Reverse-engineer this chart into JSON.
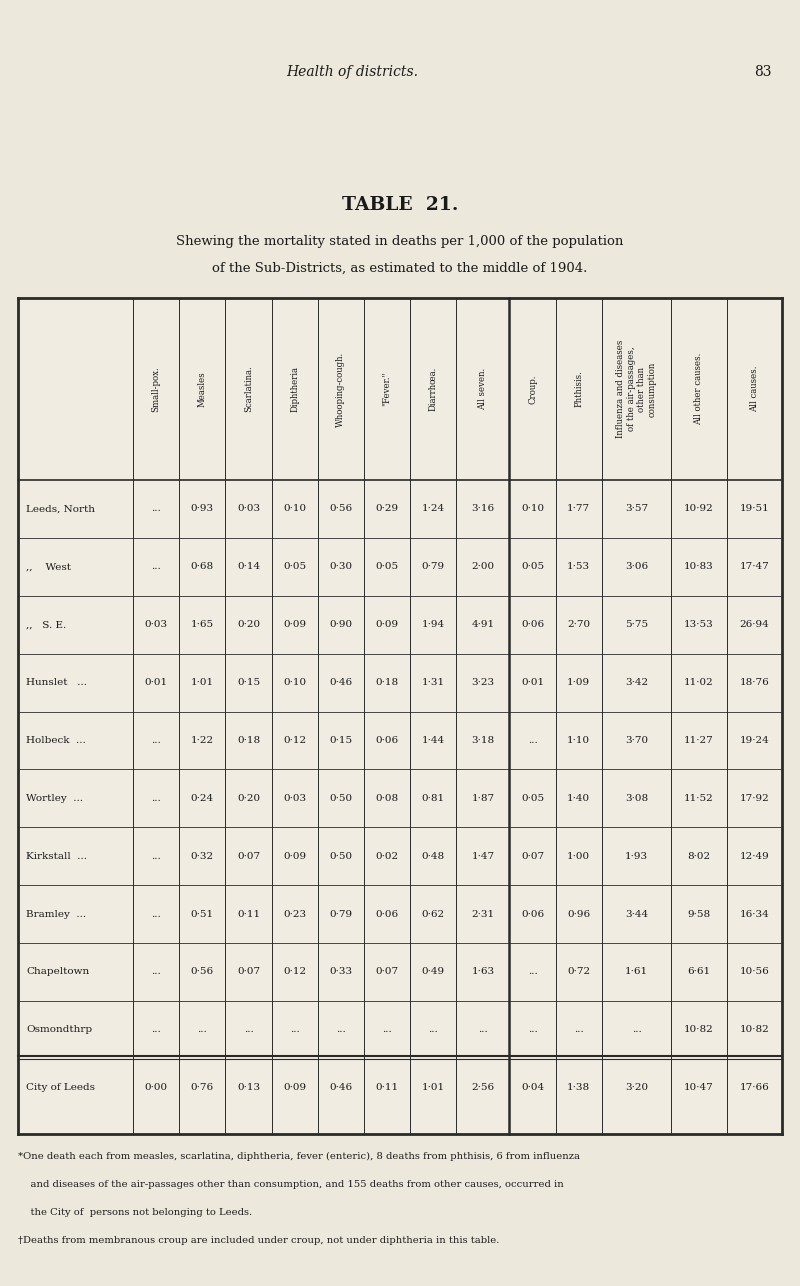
{
  "page_header": "Health of districts.",
  "page_number": "83",
  "title": "TABLE  21.",
  "subtitle1": "Shewing the mortality stated in deaths per 1,000 of the population",
  "subtitle2": "of the Sub-Districts, as estimated to the middle of 1904.",
  "col_headers": [
    "Small-pox.",
    "Measles",
    "Scarlatina.",
    "Diphtheria",
    "Whooping-cough.",
    "\"Fever.\"",
    "Diarrhœa.",
    "All seven.",
    "Croup.",
    "Phthisis.",
    "Influenza and diseases\nof the air-passages,\nother than\nconsumption",
    "All other causes.",
    "All causes."
  ],
  "rows": [
    {
      "name": "Leeds, North",
      "values": [
        "...",
        "0·93",
        "0·03",
        "0·10",
        "0·56",
        "0·29",
        "1·24",
        "3·16",
        "0·10",
        "1·77",
        "3·57",
        "10·92",
        "19·51"
      ]
    },
    {
      "name": ",,    West",
      "values": [
        "...",
        "0·68",
        "0·14",
        "0·05",
        "0·30",
        "0·05",
        "0·79",
        "2·00",
        "0·05",
        "1·53",
        "3·06",
        "10·83",
        "17·47"
      ]
    },
    {
      "name": ",,   S. E.",
      "values": [
        "0·03",
        "1·65",
        "0·20",
        "0·09",
        "0·90",
        "0·09",
        "1·94",
        "4·91",
        "0·06",
        "2·70",
        "5·75",
        "13·53",
        "26·94"
      ]
    },
    {
      "name": "Hunslet   ...",
      "values": [
        "0·01",
        "1·01",
        "0·15",
        "0·10",
        "0·46",
        "0·18",
        "1·31",
        "3·23",
        "0·01",
        "1·09",
        "3·42",
        "11·02",
        "18·76"
      ]
    },
    {
      "name": "Holbeck  ...",
      "values": [
        "...",
        "1·22",
        "0·18",
        "0·12",
        "0·15",
        "0·06",
        "1·44",
        "3·18",
        "...",
        "1·10",
        "3·70",
        "11·27",
        "19·24"
      ]
    },
    {
      "name": "Wortley  ...",
      "values": [
        "...",
        "0·24",
        "0·20",
        "0·03",
        "0·50",
        "0·08",
        "0·81",
        "1·87",
        "0·05",
        "1·40",
        "3·08",
        "11·52",
        "17·92"
      ]
    },
    {
      "name": "Kirkstall  ...",
      "values": [
        "...",
        "0·32",
        "0·07",
        "0·09",
        "0·50",
        "0·02",
        "0·48",
        "1·47",
        "0·07",
        "1·00",
        "1·93",
        "8·02",
        "12·49"
      ]
    },
    {
      "name": "Bramley  ...",
      "values": [
        "...",
        "0·51",
        "0·11",
        "0·23",
        "0·79",
        "0·06",
        "0·62",
        "2·31",
        "0·06",
        "0·96",
        "3·44",
        "9·58",
        "16·34"
      ]
    },
    {
      "name": "Chapeltown",
      "values": [
        "...",
        "0·56",
        "0·07",
        "0·12",
        "0·33",
        "0·07",
        "0·49",
        "1·63",
        "...",
        "0·72",
        "1·61",
        "6·61",
        "10·56"
      ]
    },
    {
      "name": "Osmondthrp",
      "values": [
        "...",
        "...",
        "...",
        "...",
        "...",
        "...",
        "...",
        "...",
        "...",
        "...",
        "...",
        "10·82",
        "10·82"
      ]
    },
    {
      "name": "City of Leeds",
      "values": [
        "0·00",
        "0·76",
        "0·13",
        "0·09",
        "0·46",
        "0·11",
        "1·01",
        "2·56",
        "0·04",
        "1·38",
        "3·20",
        "10·47",
        "17·66"
      ]
    }
  ],
  "footnote1": "*One death each from measles, scarlatina, diphtheria, fever (enteric), 8 deaths from phthisis, 6 from influenza",
  "footnote2": "    and diseases of the air-passages other than consumption, and 155 deaths from other causes, occurred in",
  "footnote3": "    the City of  persons not belonging to Leeds.",
  "footnote4": "†Deaths from membranous croup are included under croup, not under diphtheria in this table.",
  "bg_color": "#ede8dc",
  "text_color": "#1a1a1a",
  "table_bg": "#f0ece2",
  "line_color": "#2a2a2a"
}
